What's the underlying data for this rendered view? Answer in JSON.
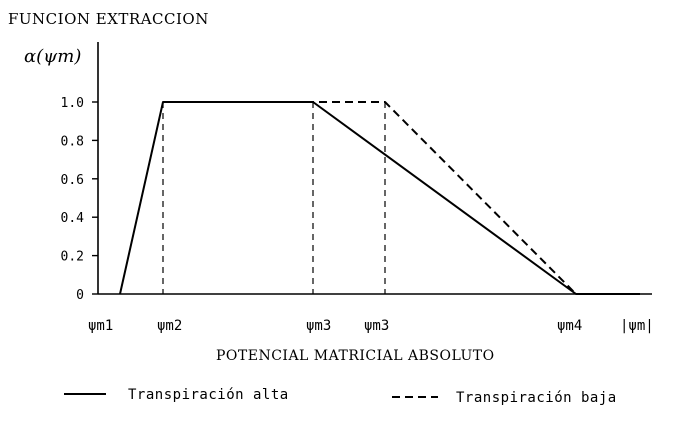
{
  "chart_data": {
    "type": "line",
    "title": "FUNCION EXTRACCION",
    "ylabel": "α(ψm)",
    "xlabel": "POTENCIAL MATRICIAL ABSOLUTO",
    "ylim": [
      0,
      1.0
    ],
    "yticks": [
      "0",
      "0.2",
      "0.4",
      "0.6",
      "0.8",
      "1.0"
    ],
    "x_tick_labels": [
      "ψm1",
      "ψm2",
      "ψm3",
      "ψm3",
      "ψm4",
      "|ψm|"
    ],
    "x_tick_keys": [
      "m1",
      "m2",
      "m3a",
      "m3b",
      "m4",
      "end"
    ],
    "series": [
      {
        "name": "Transpiración alta",
        "style": "solid",
        "points": [
          [
            "m1",
            0
          ],
          [
            "m2",
            1.0
          ],
          [
            "m3a",
            1.0
          ],
          [
            "m4",
            0
          ],
          [
            "end",
            0
          ]
        ]
      },
      {
        "name": "Transpiración baja",
        "style": "dashed",
        "points": [
          [
            "m2",
            1.0
          ],
          [
            "m3b",
            1.0
          ],
          [
            "m4",
            0
          ]
        ]
      }
    ],
    "dropline_keys": [
      "m2",
      "m3a",
      "m3b"
    ],
    "legend_position": "bottom",
    "grid": false
  }
}
